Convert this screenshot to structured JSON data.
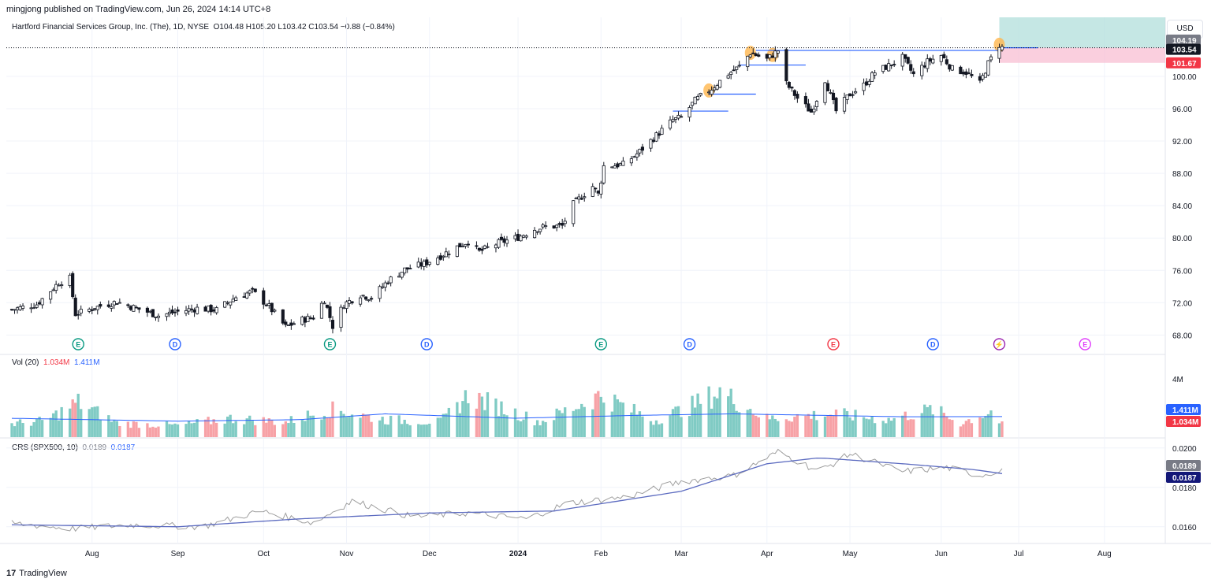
{
  "header": {
    "published": "mingjong published on TradingView.com, Jun 26, 2024 14:14 UTC+8",
    "symbol": "Hartford Financial Services Group, Inc. (The), 1D, NYSE",
    "ohlc": "O104.48 H105.20 L103.42 C103.54 −0.88 (−0.84%)"
  },
  "currency_button": "USD",
  "volume_legend": {
    "label": "Vol (20)",
    "value1": "1.034M",
    "value2": "1.411M"
  },
  "crs_legend": {
    "label": "CRS (SPX500, 10)",
    "value1": "0.0189",
    "value2": "0.0187"
  },
  "price_tags": [
    {
      "text": "104.19",
      "value": 104.19,
      "bg": "#787b86"
    },
    {
      "text": "103.54",
      "value": 103.54,
      "bg": "#131722"
    },
    {
      "text": "101.67",
      "value": 101.67,
      "bg": "#f23645"
    }
  ],
  "volume_tags": [
    {
      "text": "1.411M",
      "value": 1.411,
      "bg": "#2962ff"
    },
    {
      "text": "1.034M",
      "value": 1.034,
      "bg": "#f23645"
    }
  ],
  "crs_tags": [
    {
      "text": "0.0189",
      "value": 0.0189,
      "bg": "#787b86"
    },
    {
      "text": "0.0187",
      "value": 0.0187,
      "bg": "#131778"
    }
  ],
  "events": [
    {
      "label": "E",
      "date": "2023-07-27",
      "color": "#089981"
    },
    {
      "label": "D",
      "date": "2023-08-31",
      "color": "#2962ff"
    },
    {
      "label": "E",
      "date": "2023-10-26",
      "color": "#089981"
    },
    {
      "label": "D",
      "date": "2023-11-30",
      "color": "#2962ff"
    },
    {
      "label": "E",
      "date": "2024-02-01",
      "color": "#089981"
    },
    {
      "label": "D",
      "date": "2024-03-04",
      "color": "#2962ff"
    },
    {
      "label": "E",
      "date": "2024-04-25",
      "color": "#f23645"
    },
    {
      "label": "D",
      "date": "2024-05-31",
      "color": "#2962ff"
    },
    {
      "label": "⚡",
      "date": "2024-06-24",
      "color": "#9c27b0"
    },
    {
      "label": "E",
      "date": "2024-07-25",
      "color": "#e040fb"
    }
  ],
  "brand": "TradingView",
  "chart_data": {
    "type": "candlestick",
    "x_tick_labels": [
      {
        "label": "Aug",
        "date": "2023-08-01"
      },
      {
        "label": "Sep",
        "date": "2023-09-01"
      },
      {
        "label": "Oct",
        "date": "2023-10-02"
      },
      {
        "label": "Nov",
        "date": "2023-11-01"
      },
      {
        "label": "Dec",
        "date": "2023-12-01"
      },
      {
        "label": "2024",
        "date": "2024-01-02"
      },
      {
        "label": "Feb",
        "date": "2024-02-01"
      },
      {
        "label": "Mar",
        "date": "2024-03-01"
      },
      {
        "label": "Apr",
        "date": "2024-04-01"
      },
      {
        "label": "May",
        "date": "2024-05-01"
      },
      {
        "label": "Jun",
        "date": "2024-06-03"
      },
      {
        "label": "Jul",
        "date": "2024-07-01"
      },
      {
        "label": "Aug",
        "date": "2024-08-01"
      }
    ],
    "x_range": [
      "2023-07-01",
      "2024-08-23"
    ],
    "price_axis": {
      "range": [
        65.6,
        107.3
      ],
      "tick_labels": [
        "68.00",
        "72.00",
        "76.00",
        "80.00",
        "84.00",
        "88.00",
        "92.00",
        "96.00",
        "100.00"
      ],
      "ticks": [
        68,
        72,
        76,
        80,
        84,
        88,
        92,
        96,
        100
      ]
    },
    "volume_axis": {
      "range": [
        0,
        4.6
      ],
      "tick_labels": [
        "4M"
      ],
      "ticks": [
        4
      ]
    },
    "crs_axis": {
      "range": [
        0.01515,
        0.02035
      ],
      "tick_labels": [
        "0.0160",
        "0.0180",
        "0.0200"
      ],
      "ticks": [
        0.016,
        0.018,
        0.02
      ]
    },
    "close_series": [
      [
        "2023-07-01",
        71.0
      ],
      [
        "2023-07-12",
        71.8
      ],
      [
        "2023-07-20",
        74.5
      ],
      [
        "2023-07-24",
        75.0
      ],
      [
        "2023-07-26",
        70.6
      ],
      [
        "2023-08-04",
        71.6
      ],
      [
        "2023-08-10",
        72.1
      ],
      [
        "2023-08-18",
        71.2
      ],
      [
        "2023-08-25",
        70.4
      ],
      [
        "2023-09-01",
        70.9
      ],
      [
        "2023-09-08",
        71.3
      ],
      [
        "2023-09-15",
        71.1
      ],
      [
        "2023-09-22",
        72.7
      ],
      [
        "2023-09-28",
        73.4
      ],
      [
        "2023-10-04",
        71.5
      ],
      [
        "2023-10-10",
        69.0
      ],
      [
        "2023-10-16",
        69.9
      ],
      [
        "2023-10-20",
        70.2
      ],
      [
        "2023-10-24",
        72.4
      ],
      [
        "2023-10-27",
        69.1
      ],
      [
        "2023-10-31",
        71.8
      ],
      [
        "2023-11-06",
        73.0
      ],
      [
        "2023-11-10",
        72.6
      ],
      [
        "2023-11-16",
        74.7
      ],
      [
        "2023-11-22",
        76.1
      ],
      [
        "2023-11-29",
        76.8
      ],
      [
        "2023-12-05",
        77.8
      ],
      [
        "2023-12-11",
        78.9
      ],
      [
        "2023-12-15",
        79.6
      ],
      [
        "2023-12-19",
        78.3
      ],
      [
        "2023-12-26",
        79.4
      ],
      [
        "2024-01-02",
        80.1
      ],
      [
        "2024-01-08",
        81.1
      ],
      [
        "2024-01-12",
        81.4
      ],
      [
        "2024-01-18",
        81.5
      ],
      [
        "2024-01-22",
        84.2
      ],
      [
        "2024-01-29",
        86.4
      ],
      [
        "2024-01-31",
        85.4
      ],
      [
        "2024-02-02",
        88.9
      ],
      [
        "2024-02-09",
        89.1
      ],
      [
        "2024-02-14",
        90.4
      ],
      [
        "2024-02-21",
        92.7
      ],
      [
        "2024-02-27",
        94.6
      ],
      [
        "2024-03-01",
        94.9
      ],
      [
        "2024-03-06",
        97.0
      ],
      [
        "2024-03-12",
        98.5
      ],
      [
        "2024-03-18",
        100.3
      ],
      [
        "2024-03-22",
        101.2
      ],
      [
        "2024-03-26",
        102.9
      ],
      [
        "2024-04-01",
        102.1
      ],
      [
        "2024-04-05",
        103.2
      ],
      [
        "2024-04-08",
        99.1
      ],
      [
        "2024-04-12",
        97.3
      ],
      [
        "2024-04-17",
        95.6
      ],
      [
        "2024-04-22",
        99.6
      ],
      [
        "2024-04-26",
        95.7
      ],
      [
        "2024-05-01",
        97.8
      ],
      [
        "2024-05-06",
        98.9
      ],
      [
        "2024-05-10",
        100.5
      ],
      [
        "2024-05-15",
        101.3
      ],
      [
        "2024-05-20",
        102.3
      ],
      [
        "2024-05-24",
        100.2
      ],
      [
        "2024-05-29",
        101.8
      ],
      [
        "2024-06-03",
        102.6
      ],
      [
        "2024-06-07",
        100.9
      ],
      [
        "2024-06-12",
        100.5
      ],
      [
        "2024-06-17",
        99.1
      ],
      [
        "2024-06-20",
        101.6
      ],
      [
        "2024-06-24",
        103.9
      ],
      [
        "2024-06-25",
        103.54
      ]
    ],
    "volume_series": [
      [
        "2023-07-01",
        1.1
      ],
      [
        "2023-07-15",
        1.4
      ],
      [
        "2023-07-27",
        3.0
      ],
      [
        "2023-08-10",
        1.2
      ],
      [
        "2023-09-01",
        1.0
      ],
      [
        "2023-09-20",
        1.6
      ],
      [
        "2023-10-10",
        1.3
      ],
      [
        "2023-10-26",
        2.4
      ],
      [
        "2023-11-15",
        1.5
      ],
      [
        "2023-12-05",
        1.3
      ],
      [
        "2023-12-15",
        3.6
      ],
      [
        "2024-01-10",
        1.3
      ],
      [
        "2024-02-01",
        3.6
      ],
      [
        "2024-02-20",
        1.4
      ],
      [
        "2024-03-04",
        2.6
      ],
      [
        "2024-03-15",
        3.9
      ],
      [
        "2024-04-01",
        1.6
      ],
      [
        "2024-04-25",
        2.0
      ],
      [
        "2024-05-15",
        1.5
      ],
      [
        "2024-05-31",
        2.4
      ],
      [
        "2024-06-10",
        1.2
      ],
      [
        "2024-06-21",
        2.2
      ],
      [
        "2024-06-25",
        1.034
      ]
    ],
    "volume_ma": [
      [
        "2023-07-01",
        1.3
      ],
      [
        "2023-09-01",
        1.1
      ],
      [
        "2023-10-15",
        1.2
      ],
      [
        "2023-11-15",
        1.6
      ],
      [
        "2024-01-01",
        1.3
      ],
      [
        "2024-02-15",
        1.5
      ],
      [
        "2024-03-20",
        1.6
      ],
      [
        "2024-04-20",
        1.5
      ],
      [
        "2024-05-20",
        1.4
      ],
      [
        "2024-06-25",
        1.411
      ]
    ],
    "crs_series": [
      [
        "2023-07-01",
        0.0162
      ],
      [
        "2023-07-25",
        0.0159
      ],
      [
        "2023-08-15",
        0.0161
      ],
      [
        "2023-09-10",
        0.016
      ],
      [
        "2023-10-01",
        0.0168
      ],
      [
        "2023-10-20",
        0.0162
      ],
      [
        "2023-11-03",
        0.0173
      ],
      [
        "2023-11-25",
        0.0165
      ],
      [
        "2023-12-15",
        0.0167
      ],
      [
        "2024-01-05",
        0.0164
      ],
      [
        "2024-01-20",
        0.0172
      ],
      [
        "2024-02-10",
        0.0175
      ],
      [
        "2024-03-01",
        0.0183
      ],
      [
        "2024-03-20",
        0.0186
      ],
      [
        "2024-04-05",
        0.0198
      ],
      [
        "2024-04-20",
        0.0188
      ],
      [
        "2024-05-01",
        0.0197
      ],
      [
        "2024-05-20",
        0.0188
      ],
      [
        "2024-06-05",
        0.019
      ],
      [
        "2024-06-17",
        0.0186
      ],
      [
        "2024-06-25",
        0.0189
      ]
    ],
    "crs_ma": [
      [
        "2023-07-01",
        0.0161
      ],
      [
        "2023-09-01",
        0.016
      ],
      [
        "2023-10-15",
        0.0164
      ],
      [
        "2023-12-01",
        0.0167
      ],
      [
        "2024-01-15",
        0.0168
      ],
      [
        "2024-03-01",
        0.0178
      ],
      [
        "2024-04-01",
        0.0192
      ],
      [
        "2024-04-20",
        0.0195
      ],
      [
        "2024-05-20",
        0.0192
      ],
      [
        "2024-06-15",
        0.0189
      ],
      [
        "2024-06-25",
        0.0187
      ]
    ],
    "position_zone": {
      "start": "2024-06-24",
      "end": "2024-08-23",
      "target": 107.3,
      "entry": 103.54,
      "stop": 101.67
    },
    "horizontal_lines": [
      {
        "start": "2024-02-27",
        "end": "2024-03-18",
        "value": 95.7
      },
      {
        "start": "2024-03-11",
        "end": "2024-03-28",
        "value": 97.8
      },
      {
        "start": "2024-03-22",
        "end": "2024-04-15",
        "value": 101.4
      },
      {
        "start": "2024-03-28",
        "end": "2024-06-24",
        "value": 103.2
      },
      {
        "start": "2024-06-24",
        "end": "2024-07-08",
        "value": 103.54
      }
    ],
    "highlights": [
      "2024-03-11",
      "2024-03-26",
      "2024-04-03",
      "2024-06-24"
    ]
  }
}
